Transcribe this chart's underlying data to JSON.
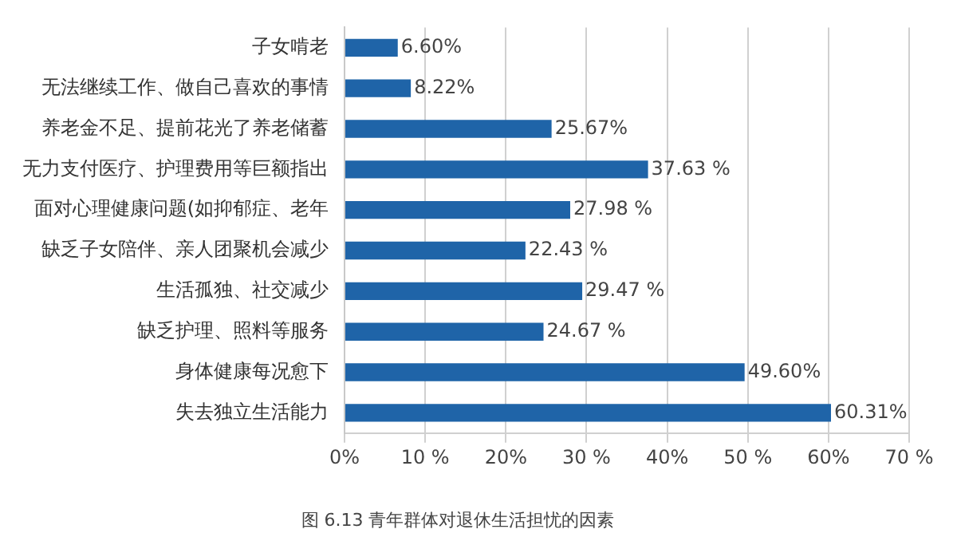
{
  "chart_data": {
    "type": "bar",
    "orientation": "horizontal",
    "title": "图 6.13 青年群体对退休生活担忧的因素",
    "categories": [
      "子女啃老",
      "无法继续工作、做自己喜欢的事情",
      "养老金不足、提前花光了养老储蓄",
      "无力支付医疗、护理费用等巨额指出",
      "面对心理健康问题(如抑郁症、老年",
      "缺乏子女陪伴、亲人团聚机会减少",
      "生活孤独、社交减少",
      "缺乏护理、照料等服务",
      "身体健康每况愈下",
      "失去独立生活能力"
    ],
    "values": [
      6.6,
      8.22,
      25.67,
      37.63,
      27.98,
      22.43,
      29.47,
      24.67,
      49.6,
      60.31
    ],
    "value_labels": [
      "6.60%",
      "8.22%",
      "25.67%",
      "37.63 %",
      "27.98 %",
      "22.43 %",
      "29.47 %",
      "24.67 %",
      "49.60%",
      "60.31%"
    ],
    "color": "#1f64a8",
    "xlim": [
      0,
      70
    ],
    "xticks": [
      {
        "value": 0,
        "label": "0%"
      },
      {
        "value": 10,
        "label": "10 %"
      },
      {
        "value": 20,
        "label": "20%"
      },
      {
        "value": 30,
        "label": "30 %"
      },
      {
        "value": 40,
        "label": "40%"
      },
      {
        "value": 50,
        "label": "50 %"
      },
      {
        "value": 60,
        "label": "60%"
      },
      {
        "value": 70,
        "label": "70 %"
      }
    ],
    "grid": "x",
    "legend": false
  }
}
